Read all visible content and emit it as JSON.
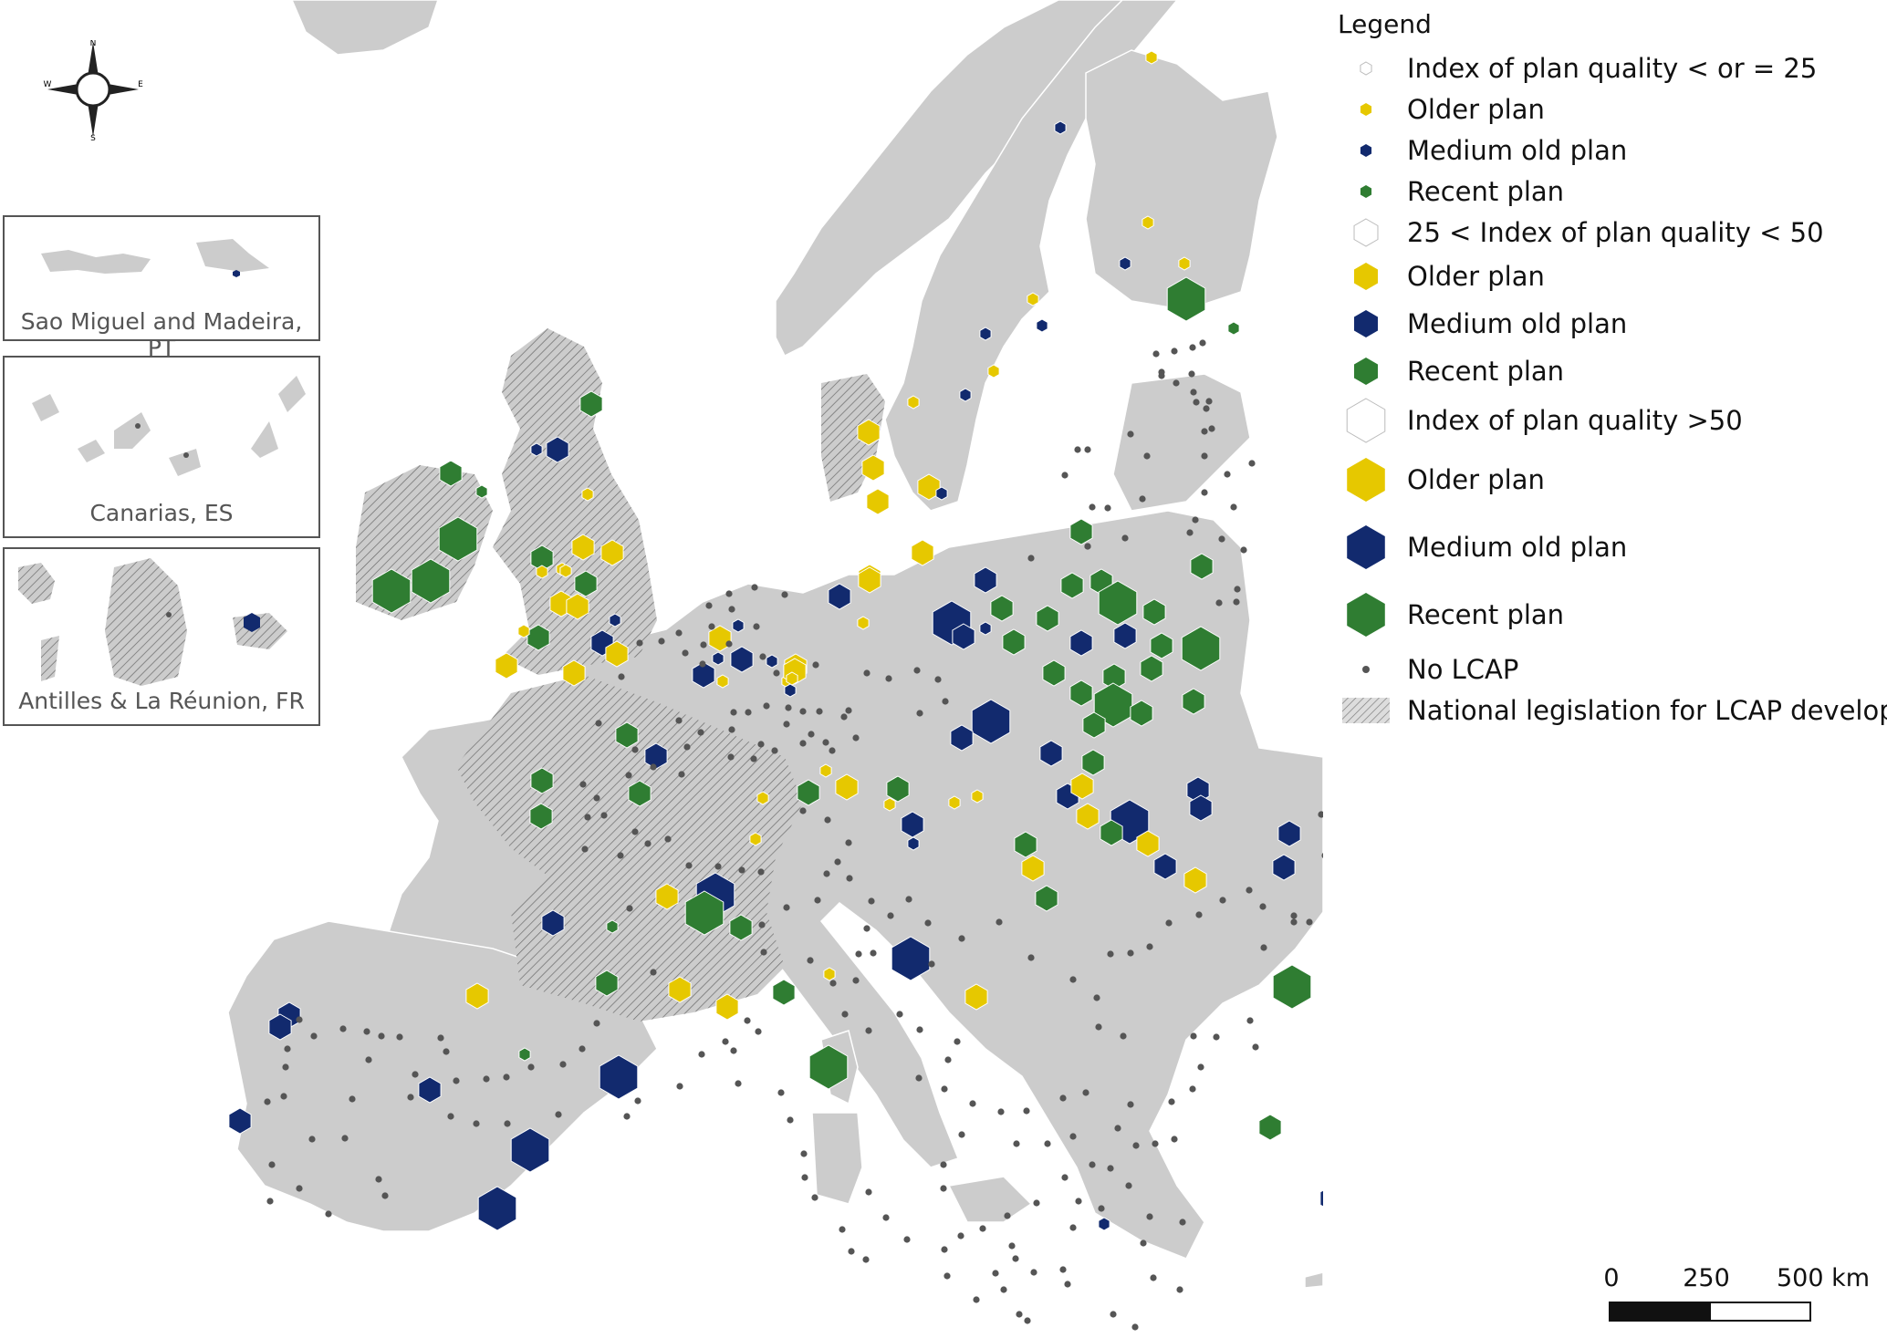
{
  "insets": [
    {
      "label": "Sao Miguel and Madeira, PT"
    },
    {
      "label": "Canarias, ES"
    },
    {
      "label": "Antilles & La Réunion, FR"
    }
  ],
  "compass": {
    "n": "N",
    "s": "S",
    "e": "E",
    "w": "W",
    "icon": "compass-rose-icon"
  },
  "legend": {
    "title": "Legend",
    "items": [
      {
        "label": "Index of plan quality < or = 25",
        "symbol": "hexagon-outline-small-icon"
      },
      {
        "label": "Older plan",
        "symbol": "hexagon-small-icon",
        "color": "#e6c800"
      },
      {
        "label": "Medium old plan",
        "symbol": "hexagon-small-icon",
        "color": "#122a6e"
      },
      {
        "label": "Recent plan",
        "symbol": "hexagon-small-icon",
        "color": "#2f7d32"
      },
      {
        "label": "25 < Index of plan quality < 50",
        "symbol": "hexagon-outline-medium-icon"
      },
      {
        "label": "Older plan",
        "symbol": "hexagon-medium-icon",
        "color": "#e6c800"
      },
      {
        "label": "Medium old plan",
        "symbol": "hexagon-medium-icon",
        "color": "#122a6e"
      },
      {
        "label": "Recent plan",
        "symbol": "hexagon-medium-icon",
        "color": "#2f7d32"
      },
      {
        "label": "Index of plan quality >50",
        "symbol": "hexagon-outline-large-icon"
      },
      {
        "label": "Older plan",
        "symbol": "hexagon-large-icon",
        "color": "#e6c800"
      },
      {
        "label": "Medium old plan",
        "symbol": "hexagon-large-icon",
        "color": "#122a6e"
      },
      {
        "label": "Recent plan",
        "symbol": "hexagon-large-icon",
        "color": "#2f7d32"
      },
      {
        "label": "No LCAP",
        "symbol": "dot-icon",
        "color": "#555555"
      },
      {
        "label": "National legislation for LCAP development",
        "symbol": "hatch-pattern-icon"
      }
    ]
  },
  "scale": {
    "labels": [
      "0",
      "250",
      "500 km"
    ]
  },
  "colors": {
    "land": "#cccccc",
    "older": "#e6c800",
    "medium": "#122a6e",
    "recent": "#2f7d32",
    "dot": "#555555"
  }
}
